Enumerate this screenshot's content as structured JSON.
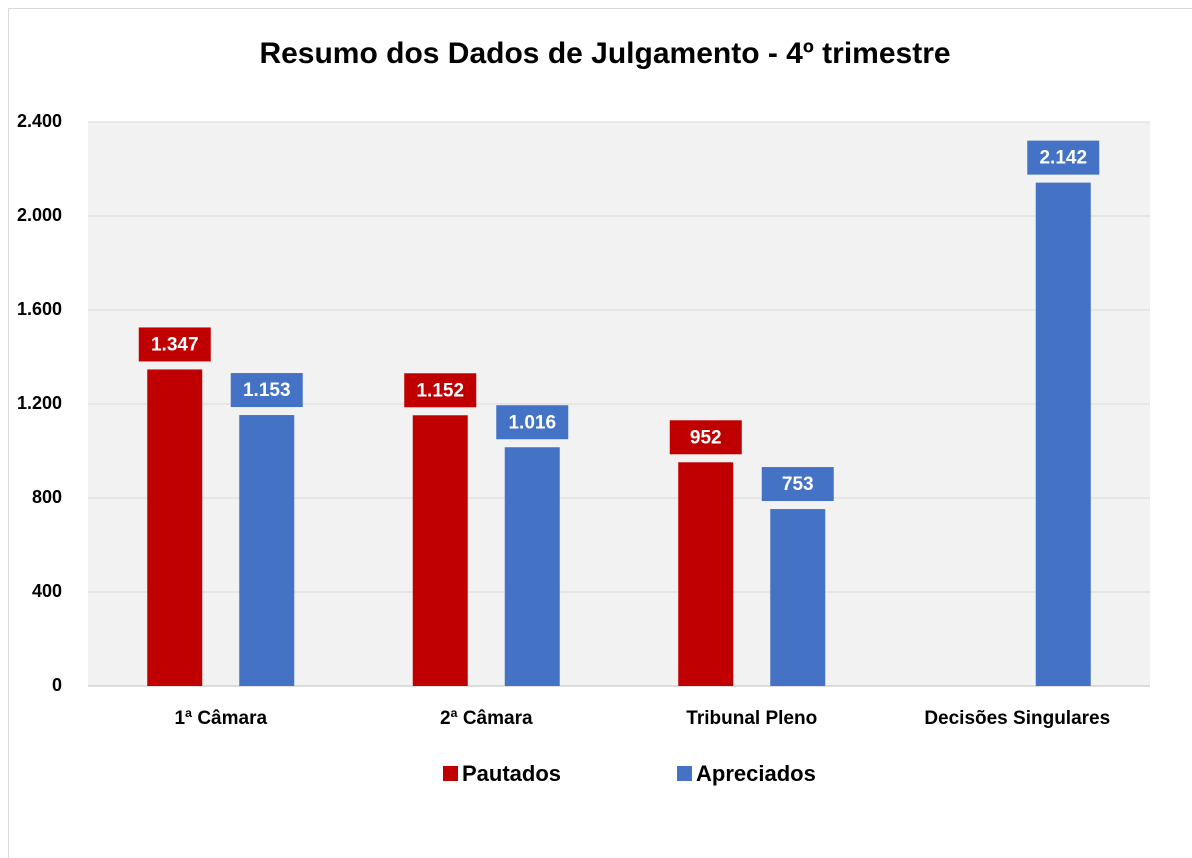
{
  "chart_data": {
    "type": "bar",
    "title": "Resumo dos Dados de Julgamento - 4º trimestre",
    "categories": [
      "1ª Câmara",
      "2ª Câmara",
      "Tribunal Pleno",
      "Decisões Singulares"
    ],
    "series": [
      {
        "name": "Pautados",
        "color": "#c00000",
        "values": [
          1347,
          1152,
          952,
          null
        ],
        "value_labels": [
          "1.347",
          "1.152",
          "952",
          null
        ]
      },
      {
        "name": "Apreciados",
        "color": "#4472c4",
        "values": [
          1153,
          1016,
          753,
          2142
        ],
        "value_labels": [
          "1.153",
          "1.016",
          "753",
          "2.142"
        ]
      }
    ],
    "ylim": [
      0,
      2400
    ],
    "yticks": [
      0,
      400,
      800,
      {
        "value": 1200,
        "label": "1.200"
      },
      {
        "value": 1600,
        "label": "1.600"
      },
      {
        "value": 2000,
        "label": "2.000"
      },
      {
        "value": 2400,
        "label": "2.400"
      }
    ],
    "grid": true,
    "legend": "bottom"
  }
}
